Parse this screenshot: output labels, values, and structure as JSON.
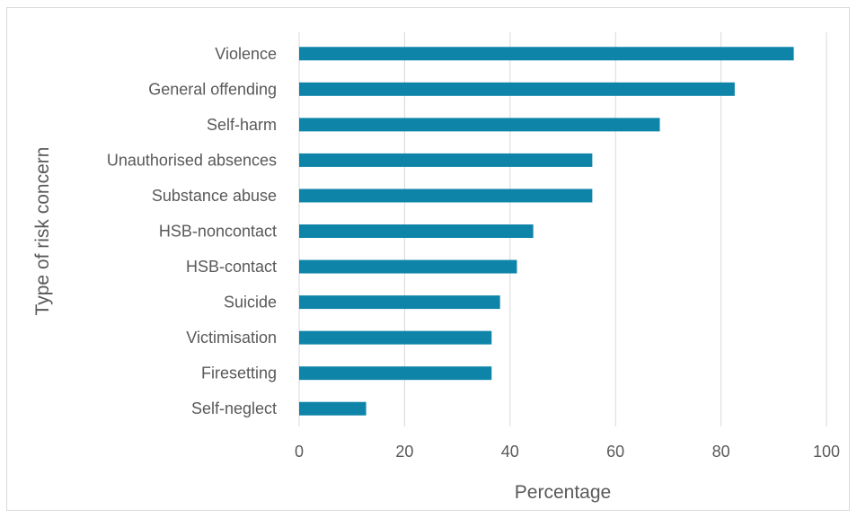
{
  "chart_data": {
    "type": "bar",
    "orientation": "horizontal",
    "categories": [
      "Violence",
      "General offending",
      "Self-harm",
      "Unauthorised absences",
      "Substance abuse",
      "HSB-noncontact",
      "HSB-contact",
      "Suicide",
      "Victimisation",
      "Firesetting",
      "Self-neglect"
    ],
    "values": [
      93.8,
      82.6,
      68.4,
      55.6,
      55.6,
      44.4,
      41.3,
      38.1,
      36.5,
      36.5,
      12.7
    ],
    "xlabel": "Percentage",
    "ylabel": "Type of risk concern",
    "xlim": [
      0,
      100
    ],
    "xticks": [
      0,
      20,
      40,
      60,
      80,
      100
    ],
    "grid": "vertical",
    "bar_color": "#0e85a8",
    "grid_color": "#d9d9d9"
  }
}
